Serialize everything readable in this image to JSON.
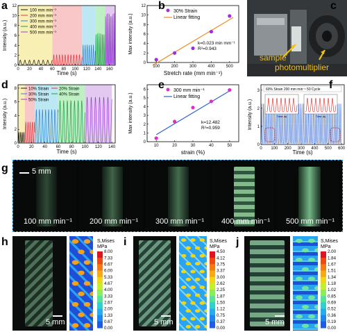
{
  "panels": {
    "a": {
      "label": "a",
      "xlabel": "Time (s)",
      "ylabel": "Intensity (a.u.)",
      "legend": [
        "100 mm min⁻¹",
        "200 mm min⁻¹",
        "300 mm min⁻¹",
        "400 mm min⁻¹",
        "500 mm min⁻¹"
      ],
      "colors": [
        "#1a1a1a",
        "#e8343c",
        "#2f7fd6",
        "#1f9a4a",
        "#9a3fd6"
      ],
      "band_colors": [
        "#f7efb3",
        "#f9c7c7",
        "#bde8f3",
        "#bff0c3",
        "#e3c8f2"
      ],
      "xticks": [
        "0",
        "20",
        "40",
        "60",
        "80",
        "100",
        "120",
        "140",
        "160"
      ],
      "yticks": [
        "0",
        "2",
        "4",
        "6",
        "8",
        "10",
        "12"
      ]
    },
    "b": {
      "label": "b",
      "xlabel": "Stretch rate (mm min⁻¹)",
      "ylabel": "Max intensity (a.u.)",
      "legend": [
        "30% Strain",
        "Linear fitting"
      ],
      "k_text": "k=0.023 min mm⁻¹",
      "r2_text": "R²=0.943",
      "xticks": [
        "100",
        "200",
        "300",
        "400",
        "500"
      ],
      "yticks": [
        "0",
        "2",
        "4",
        "6",
        "8",
        "10",
        "12"
      ]
    },
    "c": {
      "label": "c",
      "sample_text": "sample",
      "photomultiplier_text": "photomultiplier"
    },
    "d": {
      "label": "d",
      "xlabel": "Time (s)",
      "ylabel": "Intensity (a.u.)",
      "legend": [
        "10% Strain",
        "20% Strain",
        "30% Strain",
        "40% Strain",
        "50% Strain"
      ],
      "colors": [
        "#1a1a1a",
        "#e8343c",
        "#2f7fd6",
        "#1f9a4a",
        "#9a3fd6"
      ],
      "band_colors": [
        "#f7efb3",
        "#f9c7c7",
        "#bde8f3",
        "#bff0c3",
        "#e3c8f2"
      ],
      "xticks": [
        "0",
        "20",
        "40",
        "60",
        "80",
        "100",
        "120",
        "140"
      ],
      "yticks": [
        "0",
        "2",
        "4",
        "6",
        "8"
      ]
    },
    "e": {
      "label": "e",
      "xlabel": "strain (%)",
      "ylabel": "Max intensity (a.u.)",
      "legend": [
        "300 mm min⁻¹",
        "Linear fitting"
      ],
      "k_text": "k=12.482",
      "r2_text": "R²=0.959",
      "xticks": [
        "10",
        "20",
        "30",
        "40",
        "50"
      ],
      "yticks": [
        "0",
        "1",
        "2",
        "3",
        "4",
        "5",
        "6"
      ]
    },
    "f": {
      "label": "f",
      "xlabel": "Time (s)",
      "ylabel": "Intensity (a.u.)",
      "legend_text": "60% Strain    200 mm min⁻¹    50 Cycle",
      "inset_xlabel": "Time (s)",
      "xticks": [
        "0",
        "100",
        "200",
        "300",
        "400",
        "500",
        "600"
      ],
      "yticks": [
        "0",
        "1",
        "2",
        "3"
      ]
    },
    "g": {
      "label": "g",
      "scale_text": "5 mm",
      "captions": [
        "100 mm min⁻¹",
        "200 mm min⁻¹",
        "300 mm min⁻¹",
        "400 mm min⁻¹",
        "500 mm min⁻¹"
      ]
    },
    "h": {
      "label": "h",
      "scale_text": "5 mm",
      "cbar_title": "S,Mises",
      "cbar_unit": "MPa",
      "cbar_ticks": [
        "8.00",
        "7.33",
        "6.67",
        "6.00",
        "5.33",
        "4.67",
        "4.00",
        "3.33",
        "2.67",
        "2.00",
        "1.33",
        "0.67",
        "0.00"
      ]
    },
    "i": {
      "label": "i",
      "scale_text": "5 mm",
      "cbar_title": "S,Mises",
      "cbar_unit": "MPa",
      "cbar_ticks": [
        "4.50",
        "4.12",
        "3.75",
        "3.37",
        "3.00",
        "2.62",
        "2.25",
        "1.87",
        "1.50",
        "1.12",
        "0.75",
        "0.37",
        "0.00"
      ]
    },
    "j": {
      "label": "j",
      "scale_text": "5 mm",
      "cbar_title": "S,Mises",
      "cbar_unit": "MPa",
      "cbar_ticks": [
        "2.00",
        "1.84",
        "1.67",
        "1.51",
        "1.34",
        "1.18",
        "1.02",
        "0.85",
        "0.69",
        "0.52",
        "0.36",
        "0.19",
        "0.00"
      ]
    }
  },
  "chart_data": [
    {
      "panel": "b",
      "type": "scatter",
      "xlabel": "Stretch rate (mm min⁻¹)",
      "ylabel": "Max intensity (a.u.)",
      "xlim": [
        50,
        550
      ],
      "ylim": [
        0,
        12
      ],
      "series": [
        {
          "name": "30% Strain",
          "x": [
            100,
            200,
            300,
            400,
            500
          ],
          "y": [
            0.6,
            2.0,
            3.0,
            6.5,
            9.8
          ]
        },
        {
          "name": "Linear fitting",
          "x": [
            80,
            520
          ],
          "y": [
            -0.6,
            9.5
          ]
        }
      ]
    },
    {
      "panel": "e",
      "type": "scatter",
      "xlabel": "strain (%)",
      "ylabel": "Max intensity (a.u.)",
      "xlim": [
        5,
        55
      ],
      "ylim": [
        0,
        6.5
      ],
      "series": [
        {
          "name": "300 mm min⁻¹",
          "x": [
            10,
            20,
            30,
            40,
            50
          ],
          "y": [
            0.4,
            2.3,
            3.9,
            4.6,
            5.9
          ]
        },
        {
          "name": "Linear fitting",
          "x": [
            10,
            50
          ],
          "y": [
            0.8,
            5.8
          ]
        }
      ]
    }
  ]
}
